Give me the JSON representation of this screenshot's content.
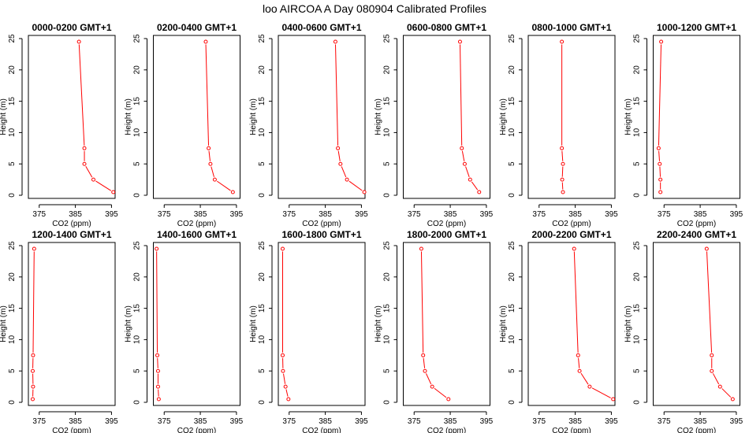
{
  "title": "loo AIRCOA A  Day 080904  Calibrated Profiles",
  "chart_data": [
    {
      "type": "line",
      "title": "0000-0200 GMT+1",
      "xlabel": "CO2 (ppm)",
      "ylabel": "Height (m)",
      "xlim": [
        372,
        396
      ],
      "ylim": [
        -0.5,
        25.5
      ],
      "xticks": [
        375,
        385,
        395
      ],
      "yticks": [
        0,
        5,
        10,
        15,
        20,
        25
      ],
      "x": [
        395.5,
        390.0,
        387.5,
        387.5,
        386.0
      ],
      "y": [
        0.5,
        2.5,
        5,
        7.5,
        24.5
      ]
    },
    {
      "type": "line",
      "title": "0200-0400 GMT+1",
      "xlabel": "CO2 (ppm)",
      "ylabel": "Height (m)",
      "xlim": [
        372,
        396
      ],
      "ylim": [
        -0.5,
        25.5
      ],
      "xticks": [
        375,
        385,
        395
      ],
      "yticks": [
        0,
        5,
        10,
        15,
        20,
        25
      ],
      "x": [
        394.0,
        389.0,
        387.8,
        387.3,
        386.5
      ],
      "y": [
        0.5,
        2.5,
        5,
        7.5,
        24.5
      ]
    },
    {
      "type": "line",
      "title": "0400-0600 GMT+1",
      "xlabel": "CO2 (ppm)",
      "ylabel": "Height (m)",
      "xlim": [
        372,
        396
      ],
      "ylim": [
        -0.5,
        25.5
      ],
      "xticks": [
        375,
        385,
        395
      ],
      "yticks": [
        0,
        5,
        10,
        15,
        20,
        25
      ],
      "x": [
        395.8,
        391.0,
        389.2,
        388.5,
        387.8
      ],
      "y": [
        0.5,
        2.5,
        5,
        7.5,
        24.5
      ]
    },
    {
      "type": "line",
      "title": "0600-0800 GMT+1",
      "xlabel": "CO2 (ppm)",
      "ylabel": "Height (m)",
      "xlim": [
        372,
        396
      ],
      "ylim": [
        -0.5,
        25.5
      ],
      "xticks": [
        375,
        385,
        395
      ],
      "yticks": [
        0,
        5,
        10,
        15,
        20,
        25
      ],
      "x": [
        393.0,
        390.5,
        389.0,
        388.2,
        387.7
      ],
      "y": [
        0.5,
        2.5,
        5,
        7.5,
        24.5
      ]
    },
    {
      "type": "line",
      "title": "0800-1000 GMT+1",
      "xlabel": "CO2 (ppm)",
      "ylabel": "Height (m)",
      "xlim": [
        372,
        396
      ],
      "ylim": [
        -0.5,
        25.5
      ],
      "xticks": [
        375,
        385,
        395
      ],
      "yticks": [
        0,
        5,
        10,
        15,
        20,
        25
      ],
      "x": [
        381.6,
        381.4,
        381.6,
        381.3,
        381.3
      ],
      "y": [
        0.5,
        2.5,
        5,
        7.5,
        24.5
      ]
    },
    {
      "type": "line",
      "title": "1000-1200 GMT+1",
      "xlabel": "CO2 (ppm)",
      "ylabel": "Height (m)",
      "xlim": [
        372,
        396
      ],
      "ylim": [
        -0.5,
        25.5
      ],
      "xticks": [
        375,
        385,
        395
      ],
      "yticks": [
        0,
        5,
        10,
        15,
        20,
        25
      ],
      "x": [
        374.0,
        374.0,
        373.8,
        373.5,
        374.2
      ],
      "y": [
        0.5,
        2.5,
        5,
        7.5,
        24.5
      ]
    },
    {
      "type": "line",
      "title": "1200-1400 GMT+1",
      "xlabel": "CO2 (ppm)",
      "ylabel": "Height (m)",
      "xlim": [
        372,
        396
      ],
      "ylim": [
        -0.5,
        25.5
      ],
      "xticks": [
        375,
        385,
        395
      ],
      "yticks": [
        0,
        5,
        10,
        15,
        20,
        25
      ],
      "x": [
        373.2,
        373.3,
        373.2,
        373.3,
        373.6
      ],
      "y": [
        0.5,
        2.5,
        5,
        7.5,
        24.5
      ]
    },
    {
      "type": "line",
      "title": "1400-1600 GMT+1",
      "xlabel": "CO2 (ppm)",
      "ylabel": "Height (m)",
      "xlim": [
        372,
        396
      ],
      "ylim": [
        -0.5,
        25.5
      ],
      "xticks": [
        375,
        385,
        395
      ],
      "yticks": [
        0,
        5,
        10,
        15,
        20,
        25
      ],
      "x": [
        373.5,
        373.3,
        373.3,
        373.1,
        372.9
      ],
      "y": [
        0.5,
        2.5,
        5,
        7.5,
        24.5
      ]
    },
    {
      "type": "line",
      "title": "1600-1800 GMT+1",
      "xlabel": "CO2 (ppm)",
      "ylabel": "Height (m)",
      "xlim": [
        372,
        396
      ],
      "ylim": [
        -0.5,
        25.5
      ],
      "xticks": [
        375,
        385,
        395
      ],
      "yticks": [
        0,
        5,
        10,
        15,
        20,
        25
      ],
      "x": [
        374.8,
        374.0,
        373.3,
        373.2,
        373.2
      ],
      "y": [
        0.5,
        2.5,
        5,
        7.5,
        24.5
      ]
    },
    {
      "type": "line",
      "title": "1800-2000 GMT+1",
      "xlabel": "CO2 (ppm)",
      "ylabel": "Height (m)",
      "xlim": [
        372,
        396
      ],
      "ylim": [
        -0.5,
        25.5
      ],
      "xticks": [
        375,
        385,
        395
      ],
      "yticks": [
        0,
        5,
        10,
        15,
        20,
        25
      ],
      "x": [
        384.5,
        380.0,
        378.0,
        377.5,
        377.0
      ],
      "y": [
        0.5,
        2.5,
        5,
        7.5,
        24.5
      ]
    },
    {
      "type": "line",
      "title": "2000-2200 GMT+1",
      "xlabel": "CO2 (ppm)",
      "ylabel": "Height (m)",
      "xlim": [
        372,
        396
      ],
      "ylim": [
        -0.5,
        25.5
      ],
      "xticks": [
        375,
        385,
        395
      ],
      "yticks": [
        0,
        5,
        10,
        15,
        20,
        25
      ],
      "x": [
        395.5,
        389.0,
        386.2,
        385.8,
        384.7
      ],
      "y": [
        0.5,
        2.5,
        5,
        7.5,
        24.5
      ]
    },
    {
      "type": "line",
      "title": "2200-2400 GMT+1",
      "xlabel": "CO2 (ppm)",
      "ylabel": "Height (m)",
      "xlim": [
        372,
        396
      ],
      "ylim": [
        -0.5,
        25.5
      ],
      "xticks": [
        375,
        385,
        395
      ],
      "yticks": [
        0,
        5,
        10,
        15,
        20,
        25
      ],
      "x": [
        394.0,
        390.5,
        388.2,
        388.2,
        386.8
      ],
      "y": [
        0.5,
        2.5,
        5,
        7.5,
        24.5
      ]
    }
  ]
}
